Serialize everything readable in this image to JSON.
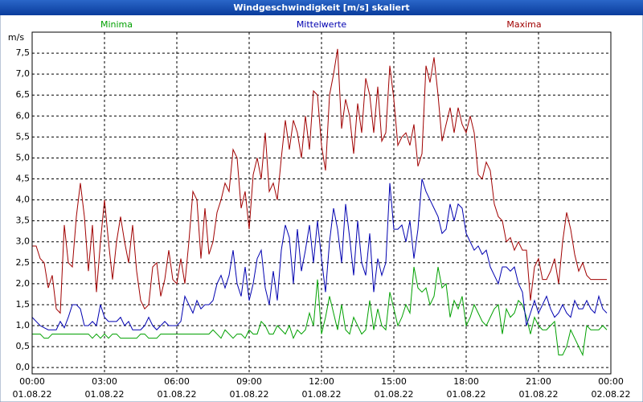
{
  "chart_data": {
    "type": "line",
    "title": "Windgeschwindigkeit [m/s] skaliert",
    "ylabel": "m/s",
    "xlim": [
      0,
      1440
    ],
    "ylim": [
      -0.15,
      8
    ],
    "xticks": [
      {
        "value": 0,
        "label": "00:00"
      },
      {
        "value": 180,
        "label": "03:00"
      },
      {
        "value": 360,
        "label": "06:00"
      },
      {
        "value": 540,
        "label": "09:00"
      },
      {
        "value": 720,
        "label": "12:00"
      },
      {
        "value": 900,
        "label": "15:00"
      },
      {
        "value": 1080,
        "label": "18:00"
      },
      {
        "value": 1260,
        "label": "21:00"
      },
      {
        "value": 1440,
        "label": "00:00"
      }
    ],
    "xtick_dates": [
      "01.08.22",
      "01.08.22",
      "01.08.22",
      "01.08.22",
      "01.08.22",
      "01.08.22",
      "01.08.22",
      "01.08.22",
      "02.08.22"
    ],
    "yticks": [
      {
        "value": 0,
        "label": "0,0"
      },
      {
        "value": 0.5,
        "label": "0,5"
      },
      {
        "value": 1,
        "label": "1,0"
      },
      {
        "value": 1.5,
        "label": "1,5"
      },
      {
        "value": 2,
        "label": "2,0"
      },
      {
        "value": 2.5,
        "label": "2,5"
      },
      {
        "value": 3,
        "label": "3,0"
      },
      {
        "value": 3.5,
        "label": "3,5"
      },
      {
        "value": 4,
        "label": "4,0"
      },
      {
        "value": 4.5,
        "label": "4,5"
      },
      {
        "value": 5,
        "label": "5,0"
      },
      {
        "value": 5.5,
        "label": "5,5"
      },
      {
        "value": 6,
        "label": "6,0"
      },
      {
        "value": 6.5,
        "label": "6,5"
      },
      {
        "value": 7,
        "label": "7,0"
      },
      {
        "value": 7.5,
        "label": "7,5"
      }
    ],
    "grid": true,
    "x": [
      0,
      10,
      20,
      30,
      40,
      50,
      60,
      70,
      80,
      90,
      100,
      110,
      120,
      130,
      140,
      150,
      160,
      170,
      180,
      190,
      200,
      210,
      220,
      230,
      240,
      250,
      260,
      270,
      280,
      290,
      300,
      310,
      320,
      330,
      340,
      350,
      360,
      370,
      380,
      390,
      400,
      410,
      420,
      430,
      440,
      450,
      460,
      470,
      480,
      490,
      500,
      510,
      520,
      530,
      540,
      550,
      560,
      570,
      580,
      590,
      600,
      610,
      620,
      630,
      640,
      650,
      660,
      670,
      680,
      690,
      700,
      710,
      720,
      730,
      740,
      750,
      760,
      770,
      780,
      790,
      800,
      810,
      820,
      830,
      840,
      850,
      860,
      870,
      880,
      890,
      900,
      910,
      920,
      930,
      940,
      950,
      960,
      970,
      980,
      990,
      1000,
      1010,
      1020,
      1030,
      1040,
      1050,
      1060,
      1070,
      1080,
      1090,
      1100,
      1110,
      1120,
      1130,
      1140,
      1150,
      1160,
      1170,
      1180,
      1190,
      1200,
      1210,
      1220,
      1230,
      1240,
      1250,
      1260,
      1270,
      1280,
      1290,
      1300,
      1310,
      1320,
      1330,
      1340,
      1350,
      1360,
      1370,
      1380,
      1390,
      1400,
      1410,
      1420,
      1430
    ],
    "series": [
      {
        "name": "Minima",
        "color": "#00a000",
        "values": [
          0.8,
          0.8,
          0.8,
          0.7,
          0.7,
          0.8,
          0.8,
          0.8,
          0.8,
          0.8,
          0.8,
          0.8,
          0.8,
          0.8,
          0.8,
          0.7,
          0.8,
          0.7,
          0.8,
          0.7,
          0.8,
          0.8,
          0.7,
          0.7,
          0.7,
          0.7,
          0.7,
          0.8,
          0.8,
          0.7,
          0.7,
          0.7,
          0.8,
          0.8,
          0.8,
          0.8,
          0.8,
          0.8,
          0.8,
          0.8,
          0.8,
          0.8,
          0.8,
          0.8,
          0.8,
          0.9,
          0.8,
          0.7,
          0.9,
          0.8,
          0.7,
          0.8,
          0.8,
          0.7,
          0.9,
          0.8,
          0.8,
          1.1,
          1.0,
          0.8,
          0.8,
          1.0,
          0.9,
          0.8,
          1.0,
          0.7,
          0.9,
          0.8,
          0.9,
          1.3,
          1.0,
          2.1,
          0.8,
          1.2,
          1.7,
          1.3,
          0.9,
          1.5,
          0.9,
          0.8,
          1.2,
          1.0,
          0.8,
          0.9,
          1.6,
          0.9,
          1.4,
          1.0,
          0.9,
          1.8,
          1.4,
          1.0,
          1.2,
          1.5,
          1.3,
          2.4,
          1.9,
          1.8,
          1.9,
          1.5,
          1.7,
          2.4,
          1.9,
          2.0,
          1.2,
          1.6,
          1.4,
          1.7,
          1.0,
          1.2,
          1.5,
          1.3,
          1.1,
          1.0,
          1.2,
          1.4,
          1.5,
          0.8,
          1.4,
          1.2,
          1.3,
          1.6,
          1.5,
          1.2,
          0.8,
          1.2,
          1.0,
          0.9,
          0.9,
          1.0,
          1.1,
          0.3,
          0.3,
          0.5,
          0.9,
          0.7,
          0.5,
          0.3,
          1.0,
          0.9,
          0.9,
          0.9,
          1.0,
          0.9
        ]
      },
      {
        "name": "Mittelwerte",
        "color": "#0000b0",
        "values": [
          1.2,
          1.1,
          1.0,
          0.95,
          0.9,
          0.9,
          0.9,
          1.1,
          0.95,
          1.2,
          1.5,
          1.5,
          1.4,
          1.0,
          1.0,
          1.1,
          1.0,
          1.5,
          1.2,
          1.1,
          1.1,
          1.1,
          1.2,
          1.0,
          1.1,
          0.9,
          0.9,
          0.9,
          1.0,
          1.2,
          1.0,
          0.9,
          1.0,
          1.1,
          1.0,
          1.0,
          1.0,
          1.1,
          1.7,
          1.5,
          1.3,
          1.6,
          1.4,
          1.5,
          1.5,
          1.6,
          2.0,
          2.2,
          1.9,
          2.2,
          2.8,
          2.0,
          1.7,
          2.4,
          1.6,
          2.0,
          2.6,
          2.8,
          1.9,
          1.5,
          2.3,
          1.6,
          2.8,
          3.4,
          3.1,
          2.0,
          3.3,
          2.3,
          2.8,
          3.4,
          2.5,
          3.5,
          2.6,
          1.8,
          3.0,
          3.8,
          3.3,
          2.5,
          3.9,
          3.1,
          2.2,
          3.5,
          2.5,
          2.2,
          3.2,
          1.8,
          2.6,
          2.2,
          2.5,
          4.4,
          3.3,
          3.3,
          3.4,
          3.0,
          3.5,
          2.6,
          3.3,
          4.5,
          4.2,
          4.0,
          3.8,
          3.6,
          3.2,
          3.3,
          3.9,
          3.5,
          3.9,
          3.8,
          3.2,
          3.0,
          2.8,
          2.9,
          2.7,
          2.8,
          2.4,
          2.2,
          2.0,
          2.4,
          2.4,
          2.3,
          2.4,
          2.0,
          1.8,
          1.0,
          1.3,
          1.6,
          1.3,
          1.5,
          1.7,
          1.4,
          1.2,
          1.3,
          1.5,
          1.3,
          1.2,
          1.6,
          1.4,
          1.4,
          1.6,
          1.4,
          1.3,
          1.7,
          1.4,
          1.3
        ]
      },
      {
        "name": "Maxima",
        "color": "#a00000",
        "values": [
          2.9,
          2.9,
          2.6,
          2.5,
          1.9,
          2.2,
          1.4,
          1.3,
          3.4,
          2.5,
          2.4,
          3.6,
          4.4,
          3.6,
          2.3,
          3.4,
          1.8,
          3.0,
          4.0,
          3.0,
          2.1,
          3.0,
          3.6,
          3.0,
          2.5,
          3.4,
          2.3,
          1.6,
          1.4,
          1.5,
          2.4,
          2.5,
          1.7,
          2.1,
          2.8,
          2.1,
          2.0,
          2.6,
          2.0,
          3.0,
          4.2,
          4.0,
          2.6,
          3.8,
          2.7,
          3.0,
          3.7,
          4.0,
          4.4,
          4.2,
          5.2,
          5.0,
          3.8,
          4.2,
          3.3,
          4.6,
          5.0,
          4.5,
          5.6,
          4.2,
          4.4,
          4.0,
          5.0,
          5.9,
          5.2,
          5.9,
          5.6,
          5.0,
          6.0,
          5.2,
          6.6,
          6.5,
          5.3,
          4.7,
          6.5,
          7.0,
          7.6,
          5.7,
          6.4,
          6.0,
          5.1,
          6.3,
          5.6,
          6.9,
          6.5,
          5.6,
          6.7,
          5.4,
          5.6,
          7.2,
          6.4,
          5.3,
          5.5,
          5.6,
          5.3,
          5.8,
          4.8,
          5.1,
          7.2,
          6.8,
          7.4,
          6.5,
          5.4,
          5.8,
          6.2,
          5.6,
          6.2,
          5.8,
          5.6,
          6.0,
          5.6,
          4.6,
          4.5,
          4.9,
          4.7,
          3.9,
          3.6,
          3.5,
          3.0,
          3.1,
          2.8,
          3.0,
          2.8,
          2.8,
          1.6,
          2.4,
          2.6,
          2.1,
          2.1,
          2.3,
          2.6,
          2.0,
          3.0,
          3.7,
          3.3,
          2.7,
          2.3,
          2.5,
          2.2,
          2.1,
          2.1,
          2.1,
          2.1,
          2.1
        ]
      }
    ]
  }
}
